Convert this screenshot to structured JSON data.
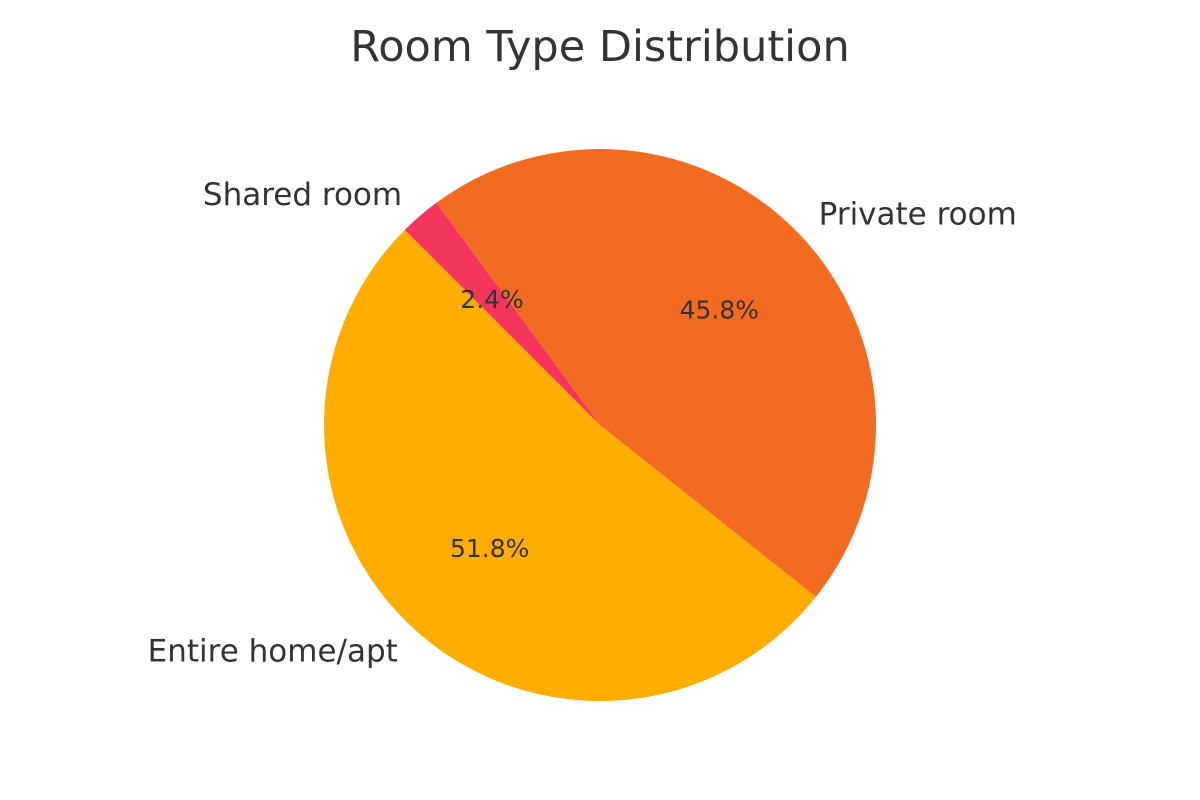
{
  "chart_data": {
    "type": "pie",
    "title": "Room Type Distribution",
    "slices": [
      {
        "label": "Entire home/apt",
        "value": 51.8,
        "pct_label": "51.8%",
        "color": "#FFAD00"
      },
      {
        "label": "Private room",
        "value": 45.8,
        "pct_label": "45.8%",
        "color": "#F26B21"
      },
      {
        "label": "Shared room",
        "value": 2.4,
        "pct_label": "2.4%",
        "color": "#F5365C"
      }
    ]
  }
}
